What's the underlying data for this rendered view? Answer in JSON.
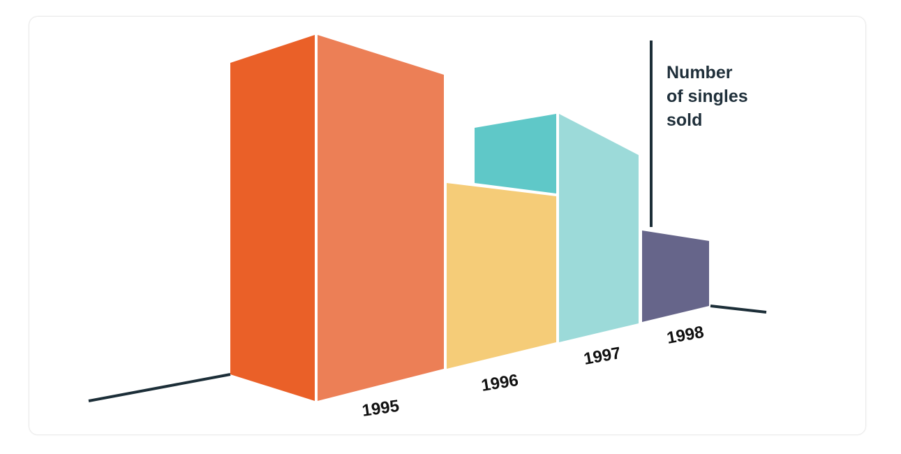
{
  "chart_data": {
    "type": "bar",
    "style": "3d-perspective",
    "title": "",
    "xlabel": "",
    "ylabel": "Number of singles sold",
    "ylabel_lines": [
      "Number",
      "of singles",
      "sold"
    ],
    "categories": [
      "1995",
      "1996",
      "1997",
      "1998"
    ],
    "values": [
      100,
      52,
      70,
      22
    ],
    "grid": false,
    "legend": "none",
    "colors": {
      "1995": {
        "front": "#ea6028",
        "side": "#ec7f56"
      },
      "1996": {
        "front": "#f5cc78",
        "side": "#5fc8c8"
      },
      "1997": {
        "front": "#5fc8c8",
        "side": "#9cdad9"
      },
      "1998": {
        "front": "#66658a",
        "side": "#66658a"
      },
      "axis": "#1c2e38"
    }
  }
}
